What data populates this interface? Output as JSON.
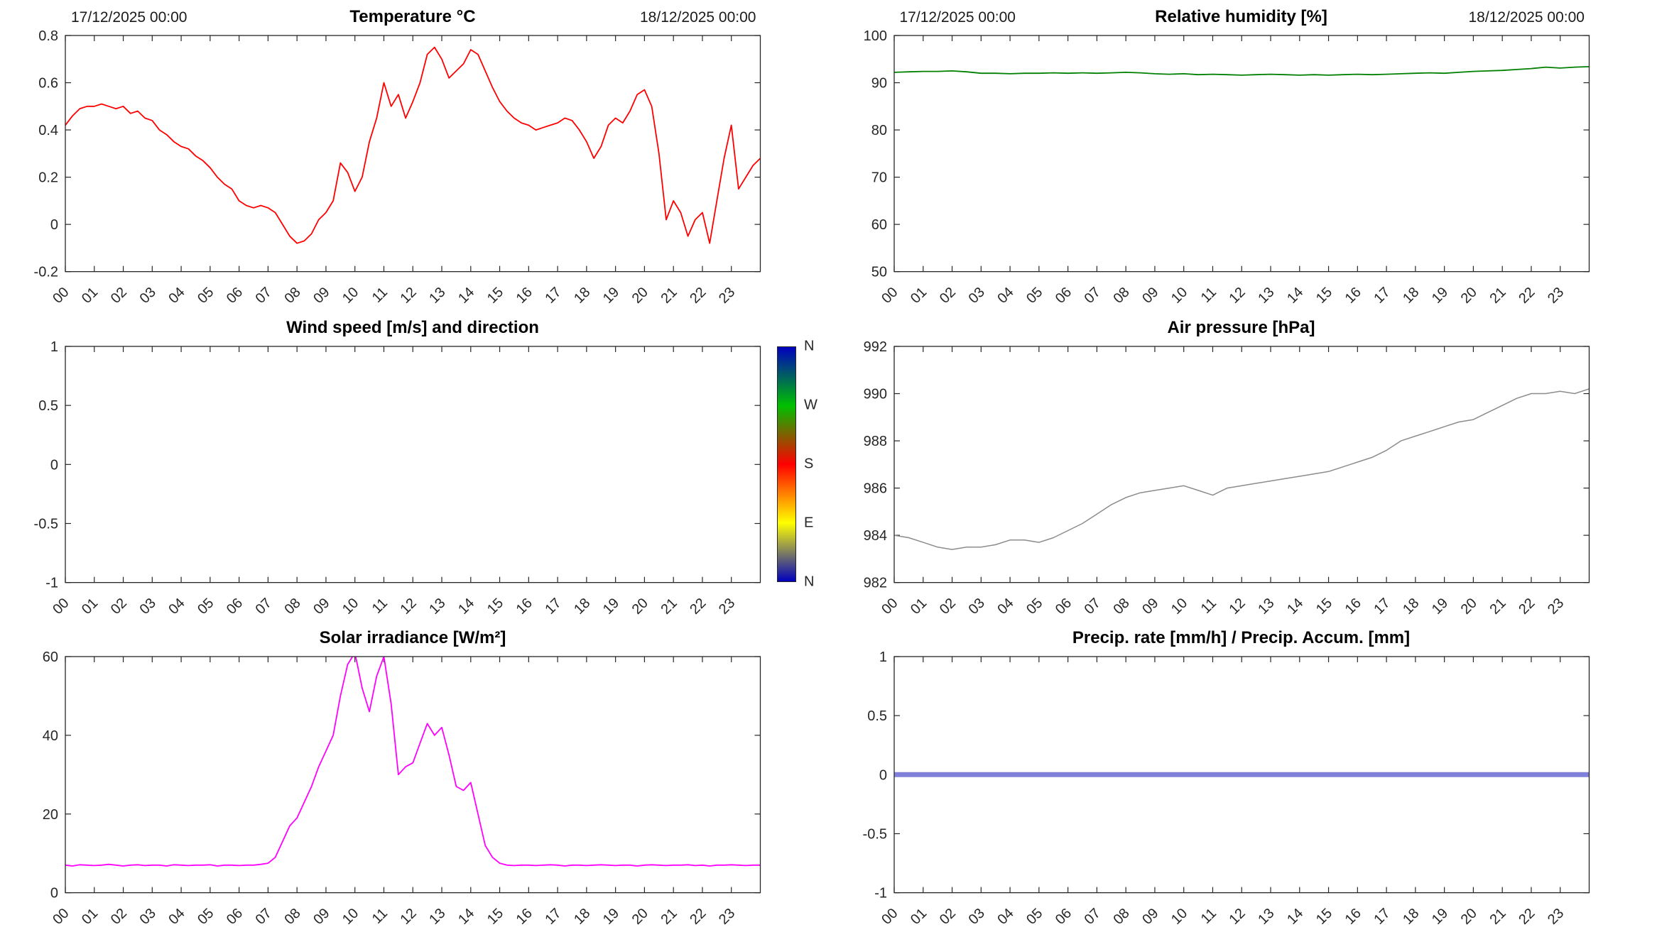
{
  "figure": {
    "background": "#ffffff"
  },
  "style": {
    "axis_color": "#262626",
    "title_color": "#000000"
  },
  "shared": {
    "xticks": [
      0,
      1,
      2,
      3,
      4,
      5,
      6,
      7,
      8,
      9,
      10,
      11,
      12,
      13,
      14,
      15,
      16,
      17,
      18,
      19,
      20,
      21,
      22,
      23
    ],
    "xtick_labels": [
      "00",
      "01",
      "02",
      "03",
      "04",
      "05",
      "06",
      "07",
      "08",
      "09",
      "10",
      "11",
      "12",
      "13",
      "14",
      "15",
      "16",
      "17",
      "18",
      "19",
      "20",
      "21",
      "22",
      "23"
    ]
  },
  "chart_data": [
    {
      "type": "line",
      "title": "Temperature °C",
      "annotations": {
        "top_left": "17/12/2025 00:00",
        "top_right": "18/12/2025 00:00"
      },
      "xlim": [
        0,
        24
      ],
      "ylim": [
        -0.2,
        0.8
      ],
      "yticks": [
        -0.2,
        0,
        0.2,
        0.4,
        0.6,
        0.8
      ],
      "ytick_labels": [
        "-0.2",
        "0",
        "0.2",
        "0.4",
        "0.6",
        "0.8"
      ],
      "series": [
        {
          "name": "temperature",
          "color": "#ff0000",
          "width": 1.8,
          "x_start": 0,
          "x_step": 0.25,
          "y": [
            0.42,
            0.46,
            0.49,
            0.5,
            0.5,
            0.51,
            0.5,
            0.49,
            0.5,
            0.47,
            0.48,
            0.45,
            0.44,
            0.4,
            0.38,
            0.35,
            0.33,
            0.32,
            0.29,
            0.27,
            0.24,
            0.2,
            0.17,
            0.15,
            0.1,
            0.08,
            0.07,
            0.08,
            0.07,
            0.05,
            0.0,
            -0.05,
            -0.08,
            -0.07,
            -0.04,
            0.02,
            0.05,
            0.1,
            0.26,
            0.22,
            0.14,
            0.2,
            0.35,
            0.45,
            0.6,
            0.5,
            0.55,
            0.45,
            0.52,
            0.6,
            0.72,
            0.75,
            0.7,
            0.62,
            0.65,
            0.68,
            0.74,
            0.72,
            0.65,
            0.58,
            0.52,
            0.48,
            0.45,
            0.43,
            0.42,
            0.4,
            0.41,
            0.42,
            0.43,
            0.45,
            0.44,
            0.4,
            0.35,
            0.28,
            0.33,
            0.42,
            0.45,
            0.43,
            0.48,
            0.55,
            0.57,
            0.5,
            0.3,
            0.02,
            0.1,
            0.05,
            -0.05,
            0.02,
            0.05,
            -0.08,
            0.1,
            0.28,
            0.42,
            0.15,
            0.2,
            0.25,
            0.28
          ]
        }
      ]
    },
    {
      "type": "line",
      "title": "Relative humidity [%]",
      "annotations": {
        "top_left": "17/12/2025 00:00",
        "top_right": "18/12/2025 00:00"
      },
      "xlim": [
        0,
        24
      ],
      "ylim": [
        50,
        100
      ],
      "yticks": [
        50,
        60,
        70,
        80,
        90,
        100
      ],
      "ytick_labels": [
        "50",
        "60",
        "70",
        "80",
        "90",
        "100"
      ],
      "series": [
        {
          "name": "relative-humidity",
          "color": "#008000",
          "width": 1.8,
          "x_start": 0,
          "x_step": 0.5,
          "y": [
            92.2,
            92.3,
            92.4,
            92.4,
            92.5,
            92.3,
            92.0,
            92.0,
            91.9,
            92.0,
            92.0,
            92.1,
            92.0,
            92.1,
            92.0,
            92.1,
            92.2,
            92.1,
            91.9,
            91.8,
            91.9,
            91.7,
            91.8,
            91.7,
            91.6,
            91.7,
            91.8,
            91.7,
            91.6,
            91.7,
            91.6,
            91.7,
            91.8,
            91.7,
            91.8,
            91.9,
            92.0,
            92.1,
            92.0,
            92.2,
            92.4,
            92.5,
            92.6,
            92.8,
            93.0,
            93.3,
            93.1,
            93.3,
            93.4
          ]
        }
      ]
    },
    {
      "type": "line",
      "title": "Wind speed [m/s] and direction",
      "xlim": [
        0,
        24
      ],
      "ylim": [
        -1,
        1
      ],
      "yticks": [
        -1,
        -0.5,
        0,
        0.5,
        1
      ],
      "ytick_labels": [
        "-1",
        "-0.5",
        "0",
        "0.5",
        "1"
      ],
      "series": [],
      "colorbar": {
        "labels": [
          "N",
          "W",
          "S",
          "E",
          "N"
        ],
        "stops": [
          {
            "pos": 0.0,
            "color": "#0000bf"
          },
          {
            "pos": 0.25,
            "color": "#00c000"
          },
          {
            "pos": 0.5,
            "color": "#ff0000"
          },
          {
            "pos": 0.75,
            "color": "#ffff00"
          },
          {
            "pos": 1.0,
            "color": "#0000bf"
          }
        ]
      }
    },
    {
      "type": "line",
      "title": "Air pressure [hPa]",
      "xlim": [
        0,
        24
      ],
      "ylim": [
        982,
        992
      ],
      "yticks": [
        982,
        984,
        986,
        988,
        990,
        992
      ],
      "ytick_labels": [
        "982",
        "984",
        "986",
        "988",
        "990",
        "992"
      ],
      "series": [
        {
          "name": "air-pressure",
          "color": "#8c8c8c",
          "width": 1.5,
          "x_start": 0,
          "x_step": 0.5,
          "y": [
            984.0,
            983.9,
            983.7,
            983.5,
            983.4,
            983.5,
            983.5,
            983.6,
            983.8,
            983.8,
            983.7,
            983.9,
            984.2,
            984.5,
            984.9,
            985.3,
            985.6,
            985.8,
            985.9,
            986.0,
            986.1,
            985.9,
            985.7,
            986.0,
            986.1,
            986.2,
            986.3,
            986.4,
            986.5,
            986.6,
            986.7,
            986.9,
            987.1,
            987.3,
            987.6,
            988.0,
            988.2,
            988.4,
            988.6,
            988.8,
            988.9,
            989.2,
            989.5,
            989.8,
            990.0,
            990.0,
            990.1,
            990.0,
            990.2
          ]
        }
      ]
    },
    {
      "type": "line",
      "title": "Solar irradiance [W/m²]",
      "xlim": [
        0,
        24
      ],
      "ylim": [
        0,
        60
      ],
      "yticks": [
        0,
        20,
        40,
        60
      ],
      "ytick_labels": [
        "0",
        "20",
        "40",
        "60"
      ],
      "series": [
        {
          "name": "solar-irradiance",
          "color": "#ff00ff",
          "width": 1.8,
          "x_start": 0,
          "x_step": 0.25,
          "y": [
            7,
            6.8,
            7.1,
            7,
            6.9,
            7,
            7.2,
            7,
            6.8,
            7,
            7.1,
            6.9,
            7,
            7,
            6.8,
            7.1,
            7,
            6.9,
            7,
            7,
            7.1,
            6.8,
            7,
            7,
            6.9,
            7,
            7,
            7.2,
            7.5,
            9,
            13,
            17,
            19,
            23,
            27,
            32,
            36,
            40,
            50,
            58,
            61,
            52,
            46,
            55,
            60,
            48,
            30,
            32,
            33,
            38,
            43,
            40,
            42,
            35,
            27,
            26,
            28,
            20,
            12,
            9,
            7.5,
            7,
            6.9,
            7,
            7,
            6.9,
            7,
            7.1,
            7,
            6.8,
            7,
            7,
            6.9,
            7,
            7.1,
            7,
            6.9,
            7,
            7,
            6.8,
            7,
            7.1,
            7,
            6.9,
            7,
            7,
            7.1,
            6.9,
            7,
            6.8,
            7,
            7,
            7.1,
            7,
            6.9,
            7,
            7
          ]
        }
      ]
    },
    {
      "type": "line",
      "title": "Precip. rate [mm/h] / Precip. Accum. [mm]",
      "xlim": [
        0,
        24
      ],
      "ylim": [
        -1,
        1
      ],
      "yticks": [
        -1,
        -0.5,
        0,
        0.5,
        1
      ],
      "ytick_labels": [
        "-1",
        "-0.5",
        "0",
        "0.5",
        "1"
      ],
      "series": [
        {
          "name": "precipitation",
          "color": "#8080db",
          "width": 7,
          "x_start": 0,
          "x_step": 24,
          "y": [
            0,
            0
          ]
        }
      ]
    }
  ]
}
